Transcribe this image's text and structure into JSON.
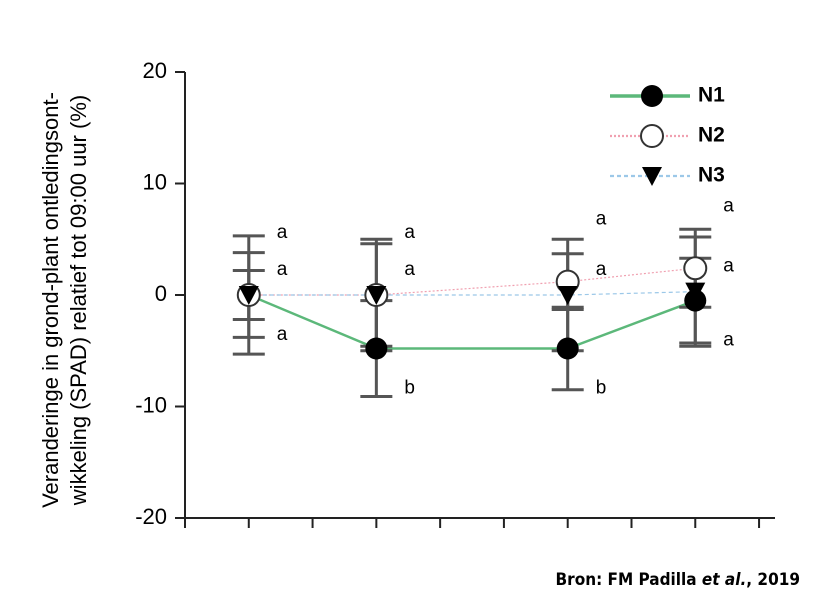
{
  "chart_data": {
    "type": "line",
    "y_label": [
      "Veranderinge in grond-plant ontledingsont-",
      "wikkeling (SPAD) relatief tot 09:00 uur (%)"
    ],
    "source": [
      "Bron: FM Padilla ",
      "et al.",
      ", 2019"
    ],
    "x": [
      1,
      3,
      6,
      8
    ],
    "xlim": [
      0,
      9.25
    ],
    "xticks": [
      0,
      1,
      2,
      3,
      4,
      5,
      6,
      7,
      8,
      9
    ],
    "ylim": [
      -20,
      20
    ],
    "yticks": [
      -20,
      -10,
      0,
      10,
      20
    ],
    "series": [
      {
        "name": "N1",
        "color": "#5cb87a",
        "marker": "filled-circle",
        "line": "solid",
        "values": [
          0,
          -4.8,
          -4.8,
          -0.5
        ],
        "errors": [
          5.3,
          4.3,
          3.7,
          3.8
        ],
        "letters": [
          "a",
          "b",
          "b",
          "a"
        ]
      },
      {
        "name": "N2",
        "color": "#f0a0b0",
        "marker": "open-circle",
        "line": "dotted",
        "values": [
          0,
          0,
          1.2,
          2.4
        ],
        "errors": [
          3.8,
          5.0,
          2.5,
          3.5
        ],
        "letters": [
          "a",
          "a",
          "a",
          "a"
        ]
      },
      {
        "name": "N3",
        "color": "#9cc8e8",
        "marker": "triangle-down",
        "line": "dashed",
        "values": [
          0,
          0,
          0,
          0.3
        ],
        "errors": [
          2.2,
          4.6,
          5.0,
          4.9
        ],
        "letters": [
          "a",
          "a",
          "a",
          "a"
        ]
      }
    ]
  }
}
